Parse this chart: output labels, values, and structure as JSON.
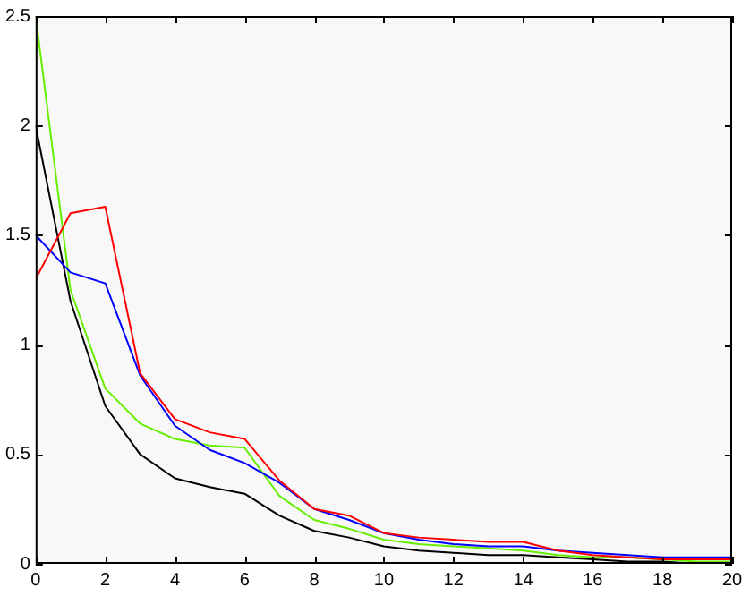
{
  "chart_data": {
    "type": "line",
    "x": [
      0,
      1,
      2,
      3,
      4,
      5,
      6,
      7,
      8,
      9,
      10,
      11,
      12,
      13,
      14,
      15,
      16,
      17,
      18,
      19,
      20
    ],
    "series": [
      {
        "color": "#ff0000",
        "values": [
          1.3,
          1.6,
          1.63,
          0.87,
          0.66,
          0.6,
          0.57,
          0.38,
          0.25,
          0.22,
          0.14,
          0.12,
          0.11,
          0.1,
          0.1,
          0.06,
          0.04,
          0.03,
          0.02,
          0.02,
          0.02
        ]
      },
      {
        "color": "#0000ff",
        "values": [
          1.5,
          1.33,
          1.28,
          0.86,
          0.63,
          0.52,
          0.46,
          0.37,
          0.25,
          0.2,
          0.14,
          0.11,
          0.09,
          0.08,
          0.08,
          0.06,
          0.05,
          0.04,
          0.03,
          0.03,
          0.03
        ]
      },
      {
        "color": "#66ee00",
        "values": [
          2.5,
          1.25,
          0.8,
          0.64,
          0.57,
          0.54,
          0.53,
          0.31,
          0.2,
          0.16,
          0.11,
          0.09,
          0.08,
          0.07,
          0.06,
          0.04,
          0.03,
          0.03,
          0.02,
          0.01,
          0.01
        ]
      },
      {
        "color": "#000000",
        "values": [
          2.0,
          1.2,
          0.72,
          0.5,
          0.39,
          0.35,
          0.32,
          0.22,
          0.15,
          0.12,
          0.08,
          0.06,
          0.05,
          0.04,
          0.04,
          0.03,
          0.02,
          0.01,
          0.01,
          0,
          0
        ]
      }
    ],
    "xlim": [
      0,
      20
    ],
    "xticks": [
      0,
      2,
      4,
      6,
      8,
      10,
      12,
      14,
      16,
      18,
      20
    ],
    "ylim": [
      0,
      2.5
    ],
    "yticks": [
      0,
      0.5,
      1,
      1.5,
      2,
      2.5
    ],
    "grid": false,
    "legend": false,
    "marker": "none",
    "line_style": "solid"
  }
}
